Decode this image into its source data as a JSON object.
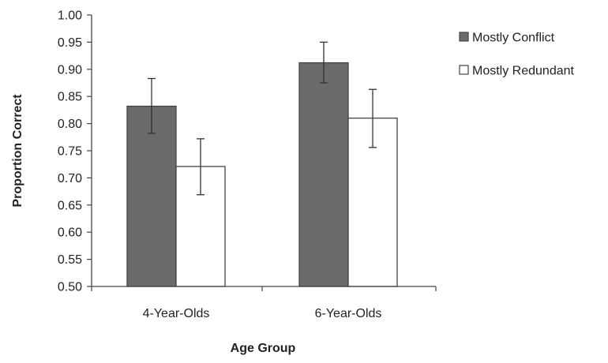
{
  "chart_data": {
    "type": "bar",
    "title": "",
    "xlabel": "Age Group",
    "ylabel": "Proportion Correct",
    "categories": [
      "4-Year-Olds",
      "6-Year-Olds"
    ],
    "ylim": [
      0.5,
      1.0
    ],
    "yticks": [
      "0.50",
      "0.55",
      "0.60",
      "0.65",
      "0.70",
      "0.75",
      "0.80",
      "0.85",
      "0.90",
      "0.95",
      "1.00"
    ],
    "series": [
      {
        "name": "Mostly Conflict",
        "color": "#6b6b6b",
        "values": [
          0.832,
          0.912
        ],
        "error_low": [
          0.782,
          0.875
        ],
        "error_high": [
          0.883,
          0.95
        ]
      },
      {
        "name": "Mostly Redundant",
        "color": "#ffffff",
        "values": [
          0.721,
          0.81
        ],
        "error_low": [
          0.669,
          0.756
        ],
        "error_high": [
          0.772,
          0.863
        ]
      }
    ],
    "legend_position": "right",
    "grid": false
  }
}
